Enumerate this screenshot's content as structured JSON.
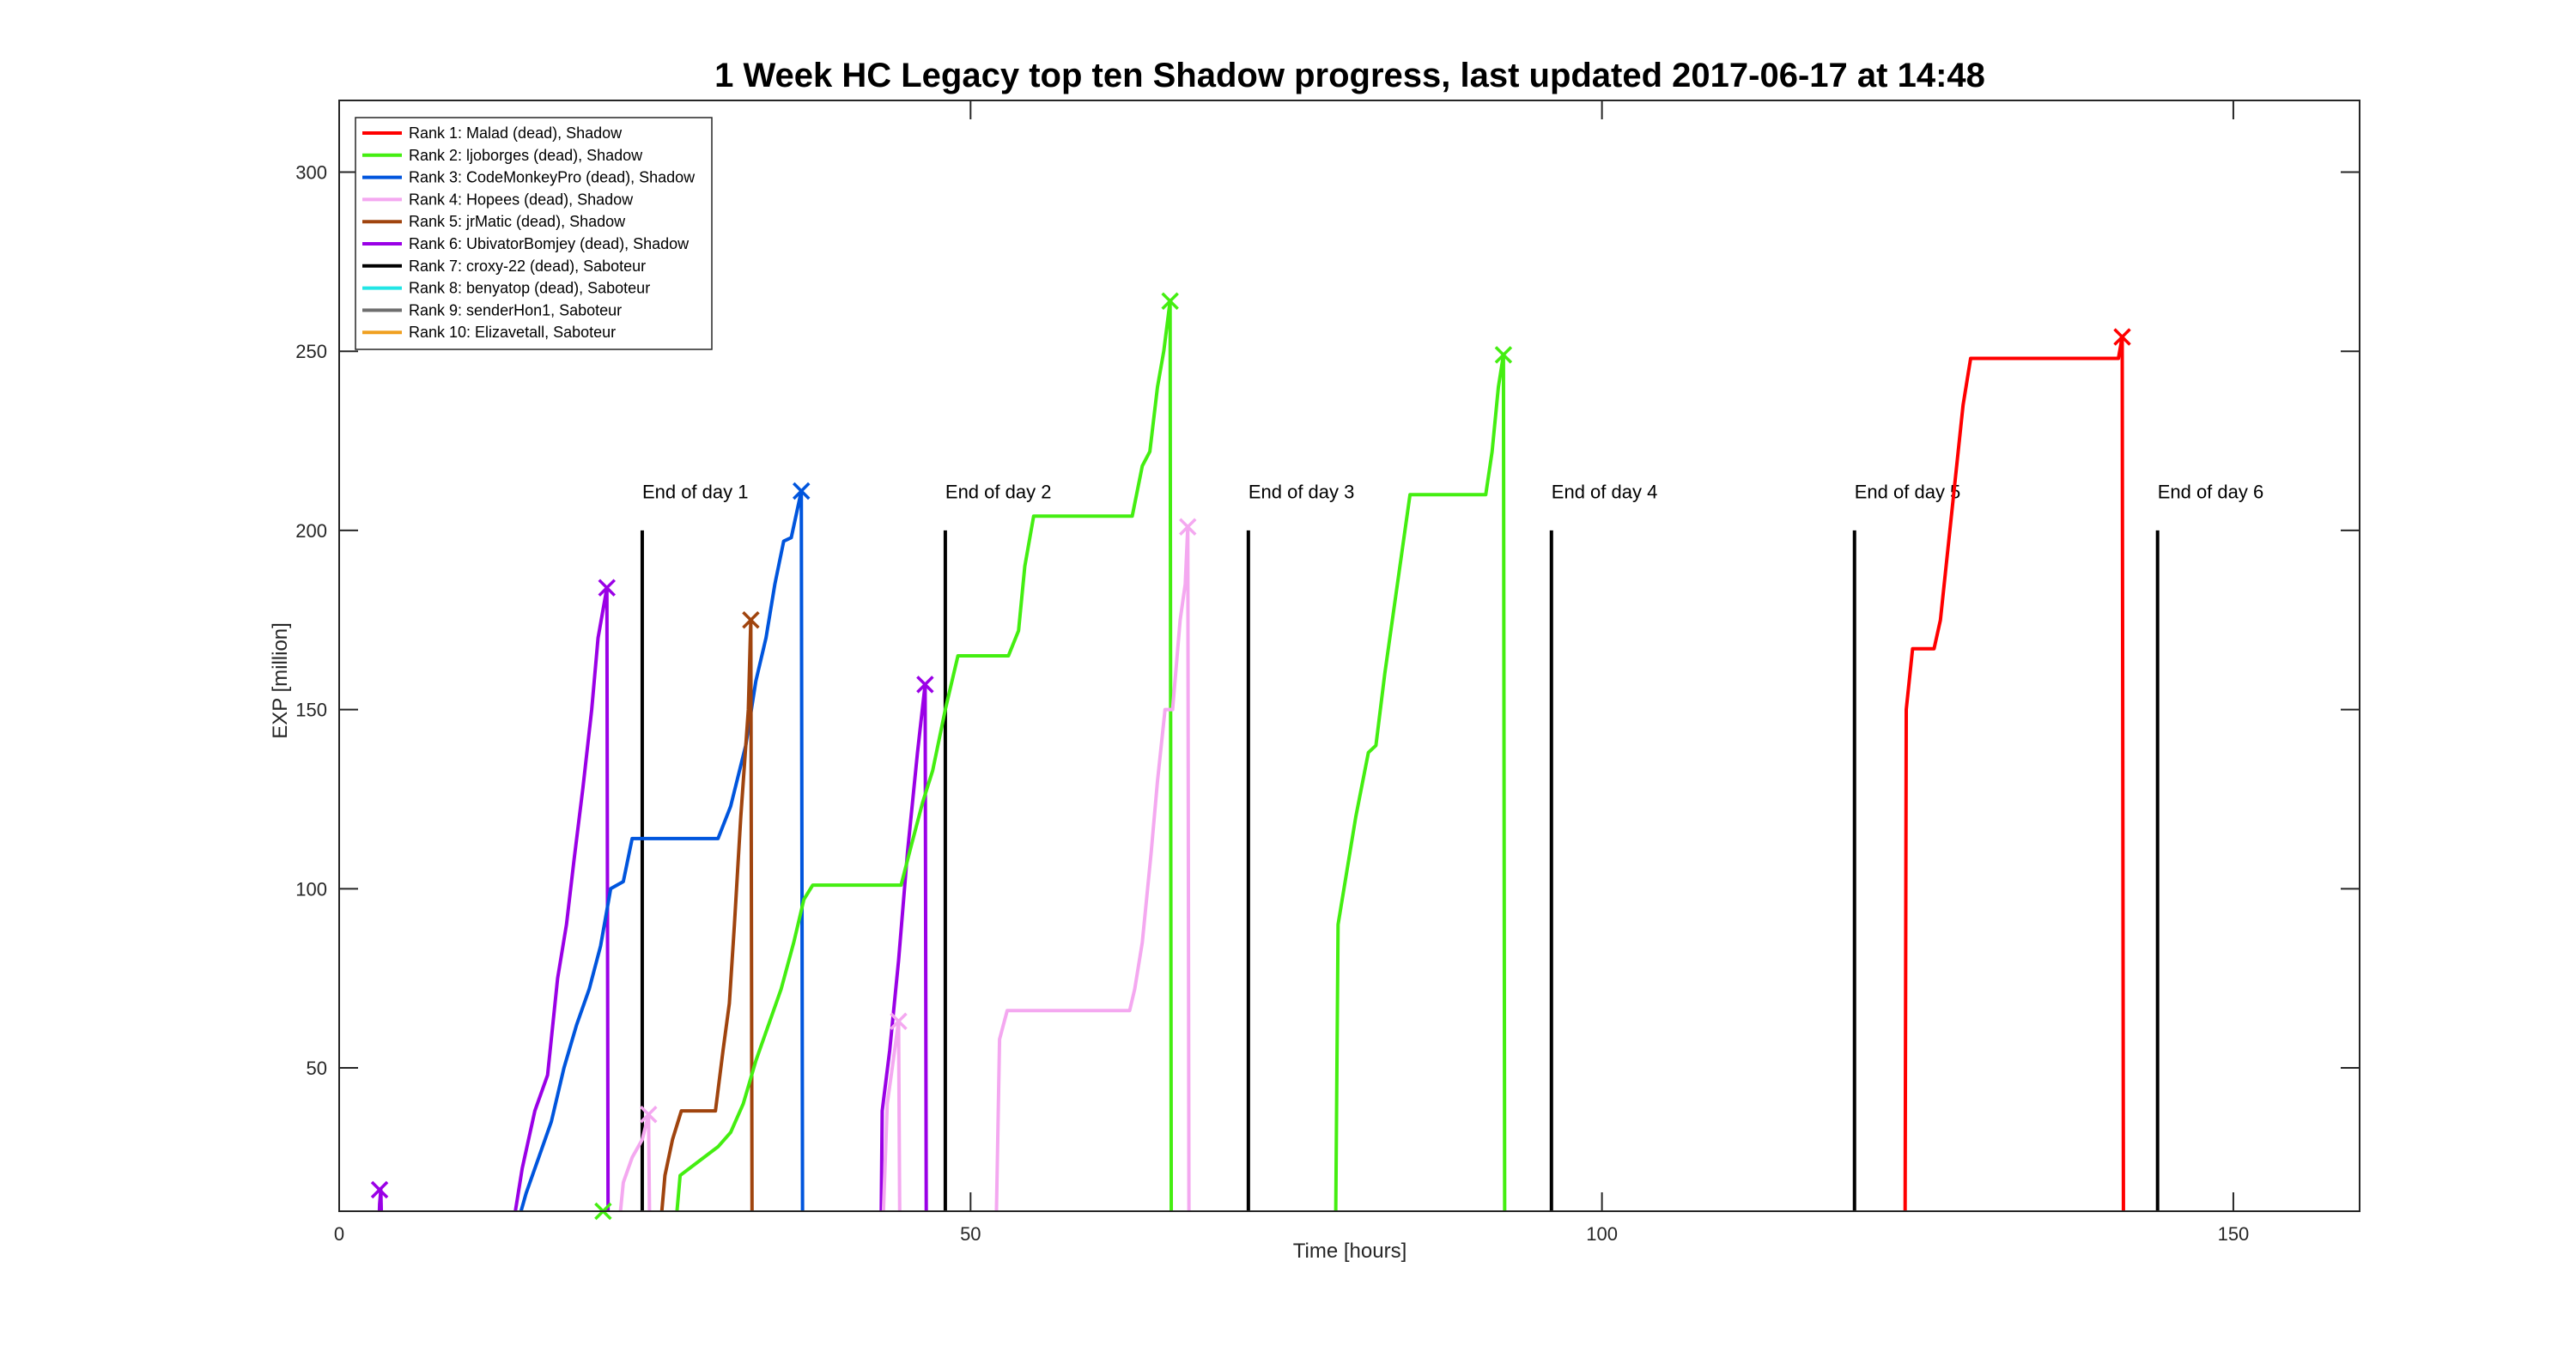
{
  "chart_data": {
    "type": "line",
    "title": "1 Week HC Legacy top ten Shadow progress, last updated 2017-06-17 at 14:48",
    "xlabel": "Time [hours]",
    "ylabel": "EXP [million]",
    "xlim": [
      0,
      160
    ],
    "ylim": [
      10,
      320
    ],
    "xticks": [
      0,
      50,
      100,
      150
    ],
    "yticks": [
      50,
      100,
      150,
      200,
      250,
      300
    ],
    "grid": false,
    "legend_position": "top-left",
    "day_markers": [
      {
        "x": 24,
        "label": "End of day 1"
      },
      {
        "x": 48,
        "label": "End of day 2"
      },
      {
        "x": 72,
        "label": "End of day 3"
      },
      {
        "x": 96,
        "label": "End of day 4"
      },
      {
        "x": 120,
        "label": "End of day 5"
      },
      {
        "x": 144,
        "label": "End of day 6"
      }
    ],
    "legend": [
      {
        "label": "Rank 1: Malad (dead), Shadow",
        "color": "#ff0000"
      },
      {
        "label": "Rank 2: ljoborges (dead), Shadow",
        "color": "#44ee11"
      },
      {
        "label": "Rank 3: CodeMonkeyPro (dead), Shadow",
        "color": "#0055dd"
      },
      {
        "label": "Rank 4: Hopees (dead), Shadow",
        "color": "#f4a8f0"
      },
      {
        "label": "Rank 5: jrMatic (dead), Shadow",
        "color": "#a0440e"
      },
      {
        "label": "Rank 6: UbivatorBomjey (dead), Shadow",
        "color": "#9a00e6"
      },
      {
        "label": "Rank 7: croxy-22 (dead), Saboteur",
        "color": "#000000"
      },
      {
        "label": "Rank 8: benyatop (dead), Saboteur",
        "color": "#22e5e5"
      },
      {
        "label": "Rank 9: senderHon1, Saboteur",
        "color": "#6e6e6e"
      },
      {
        "label": "Rank 10: Elizavetall, Saboteur",
        "color": "#f0a020"
      }
    ],
    "series": [
      {
        "name": "Rank 6: UbivatorBomjey (dead), Shadow",
        "color": "#9a00e6",
        "segments": [
          [
            [
              3.1,
              0
            ],
            [
              3.2,
              12
            ],
            [
              3.3,
              16
            ],
            [
              3.4,
              0
            ]
          ],
          [
            [
              13.5,
              0
            ],
            [
              14.5,
              22
            ],
            [
              15.5,
              38
            ],
            [
              16.5,
              48
            ],
            [
              17.3,
              75
            ],
            [
              18.0,
              90
            ],
            [
              18.6,
              108
            ],
            [
              19.3,
              128
            ],
            [
              20.0,
              150
            ],
            [
              20.5,
              170
            ],
            [
              21.2,
              184
            ],
            [
              21.3,
              0
            ]
          ],
          [
            [
              42.9,
              0
            ],
            [
              43.0,
              38
            ],
            [
              43.6,
              55
            ],
            [
              44.3,
              80
            ],
            [
              45.0,
              110
            ],
            [
              45.8,
              138
            ],
            [
              46.4,
              157
            ],
            [
              46.5,
              0
            ]
          ]
        ],
        "markers": [
          [
            3.2,
            16
          ],
          [
            21.2,
            184
          ],
          [
            46.4,
            157
          ]
        ]
      },
      {
        "name": "Rank 3: CodeMonkeyPro (dead), Shadow",
        "color": "#0055dd",
        "segments": [
          [
            [
              13.6,
              0
            ],
            [
              14.8,
              15
            ],
            [
              15.8,
              25
            ],
            [
              16.8,
              35
            ],
            [
              17.8,
              50
            ],
            [
              18.8,
              62
            ],
            [
              19.8,
              72
            ],
            [
              20.7,
              84
            ],
            [
              21.5,
              100
            ],
            [
              22.5,
              102
            ],
            [
              23.2,
              114
            ],
            [
              30.0,
              114
            ],
            [
              31.0,
              123
            ],
            [
              32.2,
              140
            ],
            [
              33.0,
              158
            ],
            [
              33.8,
              170
            ],
            [
              34.5,
              185
            ],
            [
              35.2,
              197
            ],
            [
              35.8,
              198
            ],
            [
              36.6,
              211
            ],
            [
              36.7,
              0
            ]
          ]
        ],
        "markers": [
          [
            36.6,
            211
          ]
        ]
      },
      {
        "name": "Rank 5: jrMatic (dead), Shadow",
        "color": "#a0440e",
        "segments": [
          [
            [
              25.3,
              0
            ],
            [
              25.8,
              20
            ],
            [
              26.4,
              30
            ],
            [
              27.1,
              38
            ],
            [
              29.8,
              38
            ],
            [
              30.4,
              55
            ],
            [
              30.9,
              68
            ],
            [
              31.3,
              90
            ],
            [
              31.8,
              120
            ],
            [
              32.4,
              150
            ],
            [
              32.6,
              175
            ],
            [
              32.7,
              0
            ]
          ]
        ],
        "markers": [
          [
            32.6,
            175
          ]
        ]
      },
      {
        "name": "Rank 2: ljoborges (dead), Shadow",
        "color": "#44ee11",
        "segments": [
          [
            [
              26.5,
              0
            ],
            [
              27.0,
              20
            ],
            [
              28.5,
              24
            ],
            [
              30.0,
              28
            ],
            [
              31.0,
              32
            ],
            [
              32.0,
              40
            ],
            [
              33.0,
              52
            ],
            [
              34.0,
              62
            ],
            [
              35.0,
              72
            ],
            [
              36.0,
              85
            ],
            [
              36.8,
              97
            ],
            [
              37.5,
              101
            ],
            [
              44.5,
              101
            ],
            [
              45.3,
              112
            ],
            [
              46.2,
              124
            ],
            [
              47.0,
              133
            ],
            [
              48.0,
              150
            ],
            [
              49.0,
              165
            ],
            [
              53.0,
              165
            ],
            [
              53.8,
              172
            ],
            [
              54.3,
              190
            ],
            [
              55.0,
              204
            ],
            [
              62.8,
              204
            ],
            [
              63.6,
              218
            ],
            [
              64.2,
              222
            ],
            [
              64.8,
              240
            ],
            [
              65.3,
              250
            ],
            [
              65.8,
              264
            ],
            [
              65.9,
              0
            ]
          ],
          [
            [
              78.9,
              0
            ],
            [
              79.1,
              90
            ],
            [
              80.5,
              120
            ],
            [
              81.5,
              138
            ],
            [
              82.1,
              140
            ],
            [
              82.8,
              160
            ],
            [
              83.8,
              185
            ],
            [
              84.8,
              210
            ],
            [
              90.8,
              210
            ],
            [
              91.3,
              222
            ],
            [
              91.8,
              240
            ],
            [
              92.2,
              249
            ],
            [
              92.3,
              0
            ]
          ]
        ],
        "markers": [
          [
            20.9,
            10
          ],
          [
            65.8,
            264
          ],
          [
            92.2,
            249
          ]
        ]
      },
      {
        "name": "Rank 4: Hopees (dead), Shadow",
        "color": "#f4a8f0",
        "segments": [
          [
            [
              22.0,
              0
            ],
            [
              22.5,
              18
            ],
            [
              23.2,
              25
            ],
            [
              24.0,
              30
            ],
            [
              24.5,
              37
            ],
            [
              24.6,
              0
            ]
          ],
          [
            [
              43.0,
              0
            ],
            [
              43.4,
              40
            ],
            [
              43.8,
              50
            ],
            [
              44.3,
              63
            ],
            [
              44.4,
              0
            ]
          ],
          [
            [
              52.0,
              0
            ],
            [
              52.3,
              58
            ],
            [
              52.9,
              66
            ],
            [
              62.6,
              66
            ],
            [
              63.0,
              72
            ],
            [
              63.6,
              85
            ],
            [
              64.3,
              110
            ],
            [
              64.8,
              130
            ],
            [
              65.4,
              150
            ],
            [
              66.0,
              150
            ],
            [
              66.6,
              175
            ],
            [
              67.0,
              185
            ],
            [
              67.2,
              201
            ],
            [
              67.3,
              0
            ]
          ]
        ],
        "markers": [
          [
            24.5,
            37
          ],
          [
            44.3,
            63
          ],
          [
            67.2,
            201
          ]
        ]
      },
      {
        "name": "Rank 1: Malad (dead), Shadow",
        "color": "#ff0000",
        "segments": [
          [
            [
              124.0,
              0
            ],
            [
              124.1,
              150
            ],
            [
              124.6,
              167
            ],
            [
              126.3,
              167
            ],
            [
              126.8,
              175
            ],
            [
              127.4,
              195
            ],
            [
              128.0,
              215
            ],
            [
              128.6,
              235
            ],
            [
              129.2,
              248
            ],
            [
              140.9,
              248
            ],
            [
              141.2,
              254
            ],
            [
              141.3,
              0
            ]
          ]
        ],
        "markers": [
          [
            141.2,
            254
          ]
        ]
      }
    ]
  }
}
